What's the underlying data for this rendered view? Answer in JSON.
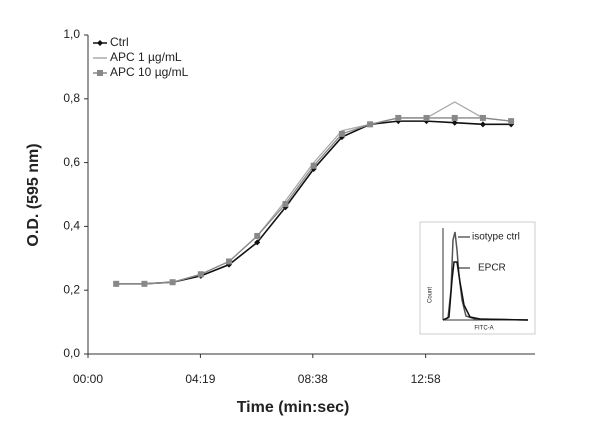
{
  "chart_data": {
    "type": "line",
    "xlabel": "Time (min:sec)",
    "ylabel": "O.D. (595 nm)",
    "x": [
      65,
      130,
      195,
      260,
      325,
      390,
      455,
      520,
      585,
      650,
      715,
      780,
      845,
      910,
      975
    ],
    "series": [
      {
        "name": "Ctrl",
        "color": "#111111",
        "marker": "diamond",
        "values": [
          0.22,
          0.22,
          0.225,
          0.245,
          0.28,
          0.35,
          0.46,
          0.58,
          0.68,
          0.72,
          0.73,
          0.73,
          0.725,
          0.72,
          0.72
        ]
      },
      {
        "name": "APC 1 µg/mL",
        "color": "#aaaaaa",
        "marker": "none",
        "values": [
          0.22,
          0.22,
          0.225,
          0.25,
          0.29,
          0.37,
          0.48,
          0.6,
          0.7,
          0.72,
          0.74,
          0.74,
          0.79,
          0.74,
          0.73
        ]
      },
      {
        "name": "APC 10 µg/mL",
        "color": "#888888",
        "marker": "square",
        "values": [
          0.22,
          0.22,
          0.225,
          0.25,
          0.29,
          0.37,
          0.47,
          0.59,
          0.69,
          0.72,
          0.74,
          0.74,
          0.74,
          0.74,
          0.73
        ]
      }
    ],
    "xlim": [
      0,
      1030
    ],
    "xticks": [
      {
        "value": 0,
        "label": "00:00"
      },
      {
        "value": 259,
        "label": "04:19"
      },
      {
        "value": 518,
        "label": "08:38"
      },
      {
        "value": 778,
        "label": "12:58"
      }
    ],
    "ylim": [
      0,
      1
    ],
    "yticks": [
      {
        "value": 0,
        "label": "0,0"
      },
      {
        "value": 0.2,
        "label": "0,2"
      },
      {
        "value": 0.4,
        "label": "0,4"
      },
      {
        "value": 0.6,
        "label": "0,6"
      },
      {
        "value": 0.8,
        "label": "0,8"
      },
      {
        "value": 1,
        "label": "1,0"
      }
    ],
    "legend": "top-left",
    "inset": {
      "ylabel": "Count",
      "xlabel": "FITC-A",
      "annotations": [
        "isotype ctrl",
        "EPCR"
      ]
    }
  }
}
